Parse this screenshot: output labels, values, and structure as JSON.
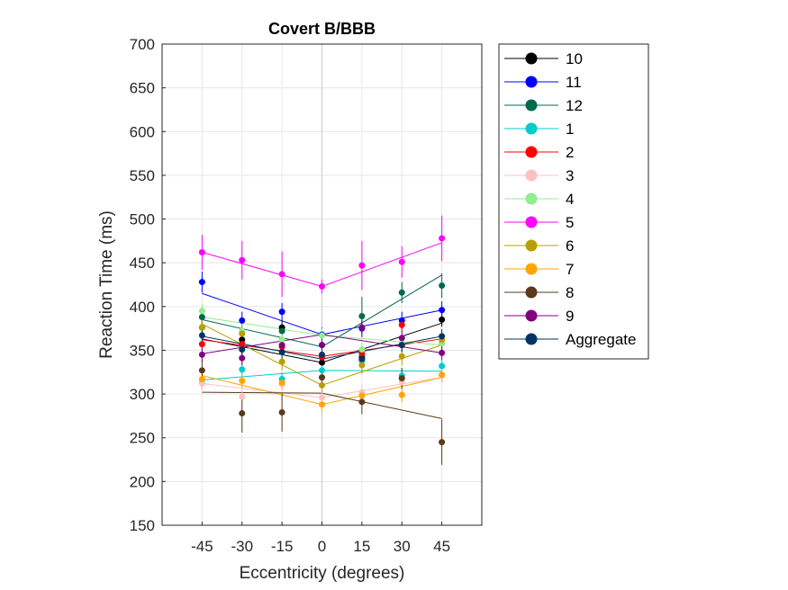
{
  "chart_data": {
    "type": "scatter",
    "title": "Covert B/BBB",
    "xlabel": "Eccentricity (degrees)",
    "ylabel": "Reaction Time (ms)",
    "xlim": [
      -60,
      60
    ],
    "ylim": [
      150,
      700
    ],
    "xticks": [
      -45,
      -30,
      -15,
      0,
      15,
      30,
      45
    ],
    "yticks": [
      150,
      200,
      250,
      300,
      350,
      400,
      450,
      500,
      550,
      600,
      650,
      700
    ],
    "grid": true,
    "legend_position": "outside-right",
    "x": [
      -45,
      -30,
      -15,
      0,
      15,
      30,
      45
    ],
    "series": [
      {
        "name": "10",
        "color": "#000000",
        "values": [
          376,
          362,
          376,
          336,
          342,
          356,
          385
        ],
        "err": [
          8,
          8,
          8,
          8,
          8,
          8,
          8
        ],
        "fit": [
          363,
          336,
          381
        ]
      },
      {
        "name": "11",
        "color": "#0000ff",
        "values": [
          428,
          384,
          394,
          368,
          375,
          384,
          396
        ],
        "err": [
          12,
          10,
          10,
          8,
          10,
          10,
          10
        ],
        "fit": [
          415,
          368,
          396
        ]
      },
      {
        "name": "12",
        "color": "#006a4e",
        "values": [
          388,
          357,
          372,
          356,
          389,
          416,
          424
        ],
        "err": [
          10,
          10,
          10,
          10,
          22,
          12,
          14
        ],
        "fit": [
          385,
          354,
          436
        ]
      },
      {
        "name": "1",
        "color": "#00cccc",
        "values": [
          313,
          328,
          317,
          327,
          338,
          321,
          332
        ],
        "err": [
          8,
          8,
          8,
          8,
          8,
          8,
          8
        ],
        "fit": [
          316,
          327,
          326
        ]
      },
      {
        "name": "2",
        "color": "#ff0000",
        "values": [
          357,
          357,
          354,
          342,
          346,
          379,
          358
        ],
        "err": [
          8,
          8,
          8,
          8,
          8,
          8,
          8
        ],
        "fit": [
          362,
          343,
          363
        ]
      },
      {
        "name": "3",
        "color": "#ffc0c0",
        "values": [
          312,
          297,
          311,
          296,
          302,
          314,
          321
        ],
        "err": [
          8,
          8,
          8,
          8,
          8,
          8,
          8
        ],
        "fit": [
          312,
          296,
          319
        ]
      },
      {
        "name": "4",
        "color": "#90ee90",
        "values": [
          395,
          372,
          362,
          367,
          351,
          358,
          358
        ],
        "err": [
          8,
          8,
          8,
          8,
          8,
          8,
          8
        ],
        "fit": [
          388,
          367,
          356
        ]
      },
      {
        "name": "5",
        "color": "#ff00ff",
        "values": [
          462,
          453,
          437,
          423,
          447,
          451,
          478
        ],
        "err": [
          20,
          22,
          26,
          8,
          28,
          18,
          26
        ],
        "fit": [
          462,
          423,
          473
        ]
      },
      {
        "name": "6",
        "color": "#b8a000",
        "values": [
          376,
          369,
          337,
          310,
          333,
          343,
          362
        ],
        "err": [
          10,
          10,
          10,
          8,
          10,
          10,
          10
        ],
        "fit": [
          380,
          310,
          356
        ]
      },
      {
        "name": "7",
        "color": "#ffa500",
        "values": [
          317,
          315,
          313,
          288,
          298,
          299,
          322
        ],
        "err": [
          8,
          8,
          8,
          8,
          8,
          8,
          8
        ],
        "fit": [
          321,
          288,
          319
        ]
      },
      {
        "name": "8",
        "color": "#5a3a1a",
        "values": [
          327,
          278,
          279,
          319,
          291,
          318,
          245
        ],
        "err": [
          12,
          22,
          22,
          10,
          14,
          12,
          26
        ],
        "fit": [
          302,
          301,
          272
        ]
      },
      {
        "name": "9",
        "color": "#800080",
        "values": [
          345,
          341,
          356,
          356,
          376,
          364,
          347
        ],
        "err": [
          8,
          8,
          8,
          8,
          8,
          8,
          8
        ],
        "fit": [
          346,
          368,
          347
        ]
      },
      {
        "name": "Aggregate",
        "color": "#003366",
        "values": [
          367,
          351,
          348,
          345,
          340,
          356,
          366
        ],
        "err": [
          8,
          8,
          8,
          8,
          8,
          8,
          8
        ],
        "fit": [
          366,
          340,
          366
        ]
      }
    ]
  }
}
